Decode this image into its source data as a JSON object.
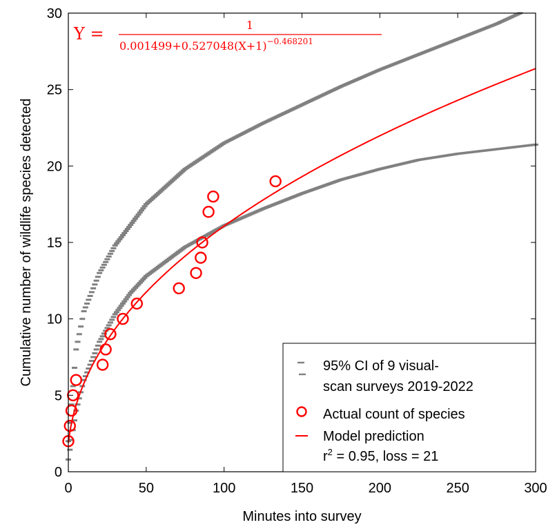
{
  "chart_data": {
    "type": "scatter",
    "xlabel": "Minutes into survey",
    "ylabel": "Cumulative number of wildlife species detected",
    "xlim": [
      0,
      300
    ],
    "ylim": [
      0,
      30
    ],
    "xticks": [
      "0",
      "50",
      "100",
      "150",
      "200",
      "250",
      "300"
    ],
    "yticks": [
      "0",
      "5",
      "10",
      "15",
      "20",
      "25",
      "30"
    ],
    "grid": false,
    "legend_position": "bottom-right",
    "equation": {
      "lhs": "Y =",
      "numerator": "1",
      "denominator": "0.001499+0.527048(X+1)",
      "exponent": "−0.468201",
      "params": {
        "a": 0.001499,
        "b": 0.527048,
        "c": -0.468201
      }
    },
    "colors": {
      "observed": "#ff0000",
      "ci": "#808080"
    },
    "series": [
      {
        "name": "95% CI of 9 visual-scan surveys 2019-2022",
        "kind": "ci-band",
        "upper": {
          "x": [
            0,
            5,
            10,
            20,
            30,
            50,
            75,
            100,
            125,
            150,
            175,
            200,
            225,
            250,
            275,
            290
          ],
          "y": [
            2.0,
            8.0,
            10.5,
            13.0,
            14.8,
            17.5,
            19.8,
            21.5,
            22.8,
            24.0,
            25.2,
            26.3,
            27.3,
            28.3,
            29.3,
            30.0
          ]
        },
        "lower": {
          "x": [
            0,
            5,
            10,
            20,
            30,
            40,
            50,
            75,
            100,
            125,
            150,
            175,
            200,
            225,
            250,
            275,
            300
          ],
          "y": [
            0.8,
            4.0,
            6.0,
            8.5,
            10.3,
            11.7,
            12.8,
            14.7,
            16.1,
            17.2,
            18.2,
            19.1,
            19.8,
            20.4,
            20.8,
            21.1,
            21.4
          ]
        }
      },
      {
        "name": "Actual count of species",
        "kind": "points",
        "x": [
          0,
          1,
          2,
          3,
          5,
          22,
          24,
          27,
          35,
          44,
          71,
          82,
          85,
          86,
          90,
          93,
          133
        ],
        "y": [
          2,
          3,
          4,
          5,
          6,
          7,
          8,
          9,
          10,
          11,
          12,
          13,
          14,
          15,
          17,
          18,
          19
        ]
      },
      {
        "name": "Model prediction",
        "kind": "model-curve"
      }
    ],
    "legend_labels": {
      "ci_line1": "95% CI of 9 visual-",
      "ci_line2": "scan surveys 2019-2022",
      "actual": "Actual count of species",
      "model": "Model prediction",
      "stats_r": "r",
      "stats_sup": "2",
      "stats_rest": " = 0.95, loss = 21"
    }
  }
}
